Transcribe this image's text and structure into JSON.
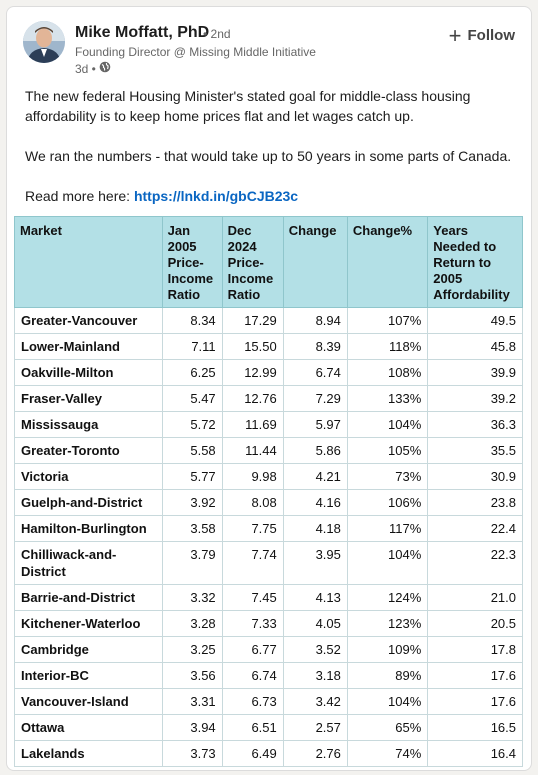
{
  "author": {
    "name": "Mike Moffatt, PhD",
    "degree": "• 2nd",
    "headline": "Founding Director @ Missing Middle Initiative",
    "time": "3d •",
    "visibility_icon": "globe-icon"
  },
  "follow_label": "Follow",
  "post": {
    "paragraph1": "The new federal Housing Minister's stated goal for middle-class housing affordability is to keep home prices flat and let wages catch up.",
    "paragraph2": "We ran the numbers - that would take up to 50 years in some parts of Canada.",
    "read_more_label": "Read more here:",
    "link": "https://lnkd.in/gbCJB23c"
  },
  "table": {
    "headers": [
      "Market",
      "Jan 2005 Price-Income Ratio",
      "Dec 2024 Price-Income Ratio",
      "Change",
      "Change%",
      "Years Needed to Return to 2005 Affordability"
    ],
    "rows": [
      [
        "Greater-Vancouver",
        "8.34",
        "17.29",
        "8.94",
        "107%",
        "49.5"
      ],
      [
        "Lower-Mainland",
        "7.11",
        "15.50",
        "8.39",
        "118%",
        "45.8"
      ],
      [
        "Oakville-Milton",
        "6.25",
        "12.99",
        "6.74",
        "108%",
        "39.9"
      ],
      [
        "Fraser-Valley",
        "5.47",
        "12.76",
        "7.29",
        "133%",
        "39.2"
      ],
      [
        "Mississauga",
        "5.72",
        "11.69",
        "5.97",
        "104%",
        "36.3"
      ],
      [
        "Greater-Toronto",
        "5.58",
        "11.44",
        "5.86",
        "105%",
        "35.5"
      ],
      [
        "Victoria",
        "5.77",
        "9.98",
        "4.21",
        "73%",
        "30.9"
      ],
      [
        "Guelph-and-District",
        "3.92",
        "8.08",
        "4.16",
        "106%",
        "23.8"
      ],
      [
        "Hamilton-Burlington",
        "3.58",
        "7.75",
        "4.18",
        "117%",
        "22.4"
      ],
      [
        "Chilliwack-and-District",
        "3.79",
        "7.74",
        "3.95",
        "104%",
        "22.3"
      ],
      [
        "Barrie-and-District",
        "3.32",
        "7.45",
        "4.13",
        "124%",
        "21.0"
      ],
      [
        "Kitchener-Waterloo",
        "3.28",
        "7.33",
        "4.05",
        "123%",
        "20.5"
      ],
      [
        "Cambridge",
        "3.25",
        "6.77",
        "3.52",
        "109%",
        "17.8"
      ],
      [
        "Interior-BC",
        "3.56",
        "6.74",
        "3.18",
        "89%",
        "17.6"
      ],
      [
        "Vancouver-Island",
        "3.31",
        "6.73",
        "3.42",
        "104%",
        "17.6"
      ],
      [
        "Ottawa",
        "3.94",
        "6.51",
        "2.57",
        "65%",
        "16.5"
      ],
      [
        "Lakelands",
        "3.73",
        "6.49",
        "2.76",
        "74%",
        "16.4"
      ]
    ]
  },
  "colors": {
    "header_bg": "#b3e0e6",
    "link": "#0a66c2"
  }
}
